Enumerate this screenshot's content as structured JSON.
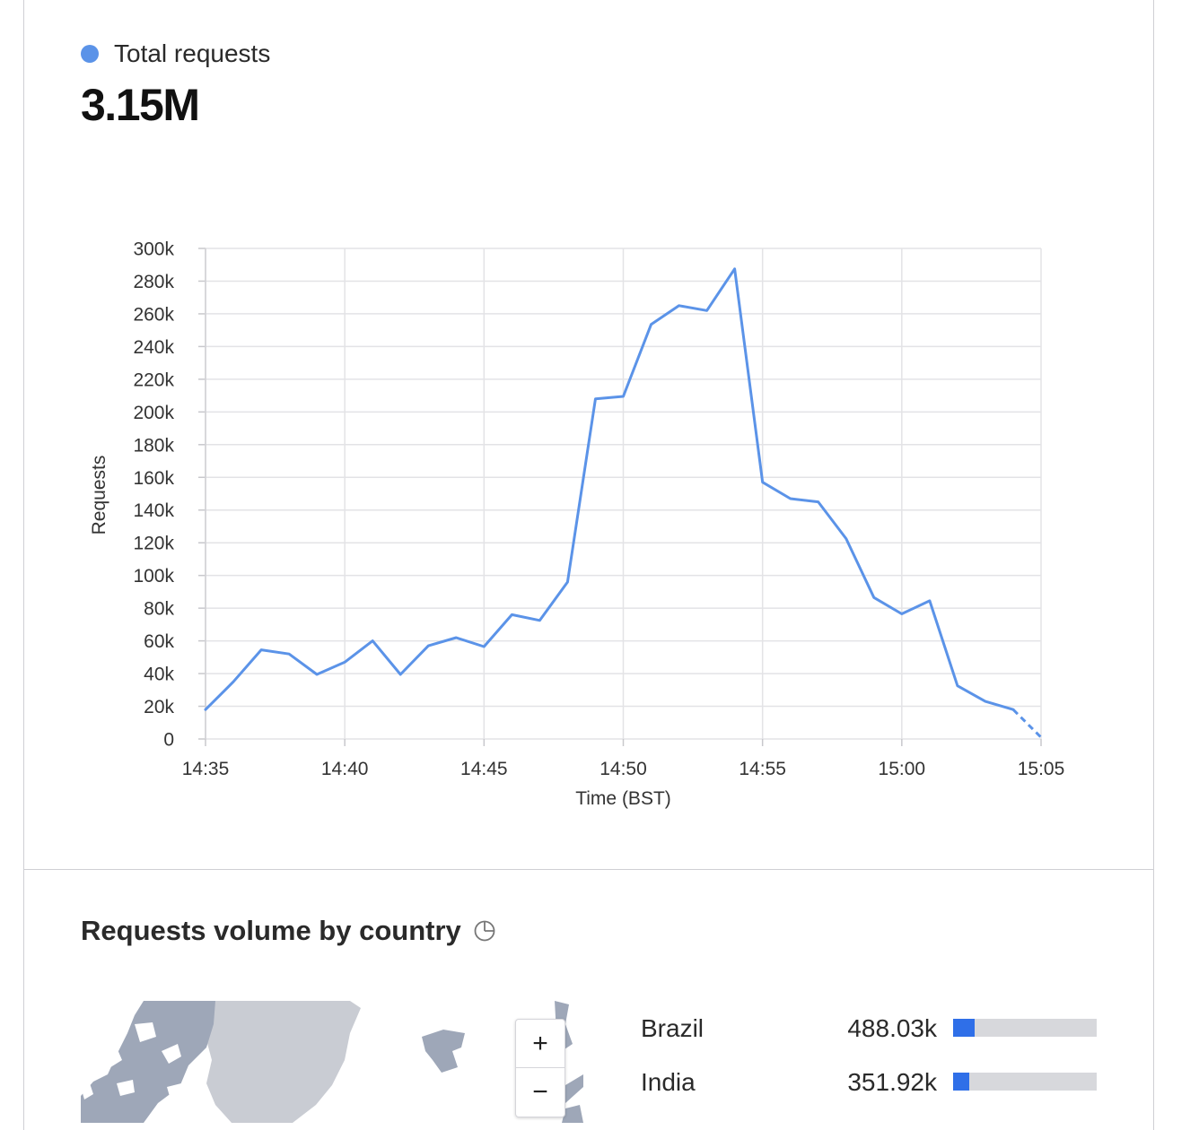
{
  "summary": {
    "series_label": "Total requests",
    "total": "3.15M",
    "series_color": "#5b93e8"
  },
  "chart_data": {
    "type": "line",
    "xlabel": "Time (BST)",
    "ylabel": "Requests",
    "ylim": [
      0,
      300000
    ],
    "y_ticks": [
      "0",
      "20k",
      "40k",
      "60k",
      "80k",
      "100k",
      "120k",
      "140k",
      "160k",
      "180k",
      "200k",
      "220k",
      "240k",
      "260k",
      "280k",
      "300k"
    ],
    "x_ticks": [
      "14:35",
      "14:40",
      "14:45",
      "14:50",
      "14:55",
      "15:00",
      "15:05"
    ],
    "grid": true,
    "x": [
      "14:35",
      "14:36",
      "14:37",
      "14:38",
      "14:39",
      "14:40",
      "14:41",
      "14:42",
      "14:43",
      "14:44",
      "14:45",
      "14:46",
      "14:47",
      "14:48",
      "14:49",
      "14:50",
      "14:51",
      "14:52",
      "14:53",
      "14:54",
      "14:55",
      "14:56",
      "14:57",
      "14:58",
      "14:59",
      "15:00",
      "15:01",
      "15:02",
      "15:03",
      "15:04",
      "15:05"
    ],
    "series": [
      {
        "color": "#5b93e8",
        "values": [
          18000,
          35000,
          54500,
          52000,
          39500,
          47000,
          60000,
          39500,
          57000,
          62000,
          56500,
          76000,
          72500,
          96000,
          208000,
          209500,
          253500,
          265000,
          262000,
          287500,
          157000,
          147000,
          145000,
          122500,
          86500,
          76500,
          84500,
          32500,
          23000,
          18000,
          1000
        ],
        "partial_last_point": true
      }
    ]
  },
  "country_section": {
    "title": "Requests volume by country",
    "title_icon": "pie-chart-icon",
    "zoom_in": "+",
    "zoom_out": "−",
    "countries": [
      {
        "name": "Brazil",
        "value": "488.03k",
        "share": 0.15
      },
      {
        "name": "India",
        "value": "351.92k",
        "share": 0.11
      }
    ]
  }
}
